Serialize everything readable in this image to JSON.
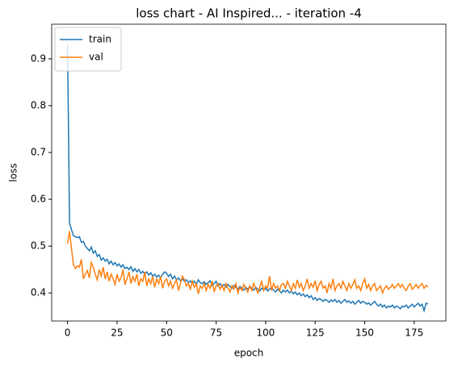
{
  "chart_data": {
    "type": "line",
    "title": "loss chart - AI Inspired... - iteration -4",
    "xlabel": "epoch",
    "ylabel": "loss",
    "x": [
      0,
      1,
      2,
      3,
      4,
      5,
      6,
      7,
      8,
      9,
      10,
      11,
      12,
      13,
      14,
      15,
      16,
      17,
      18,
      19,
      20,
      21,
      22,
      23,
      24,
      25,
      26,
      27,
      28,
      29,
      30,
      31,
      32,
      33,
      34,
      35,
      36,
      37,
      38,
      39,
      40,
      41,
      42,
      43,
      44,
      45,
      46,
      47,
      48,
      49,
      50,
      51,
      52,
      53,
      54,
      55,
      56,
      57,
      58,
      59,
      60,
      61,
      62,
      63,
      64,
      65,
      66,
      67,
      68,
      69,
      70,
      71,
      72,
      73,
      74,
      75,
      76,
      77,
      78,
      79,
      80,
      81,
      82,
      83,
      84,
      85,
      86,
      87,
      88,
      89,
      90,
      91,
      92,
      93,
      94,
      95,
      96,
      97,
      98,
      99,
      100,
      101,
      102,
      103,
      104,
      105,
      106,
      107,
      108,
      109,
      110,
      111,
      112,
      113,
      114,
      115,
      116,
      117,
      118,
      119,
      120,
      121,
      122,
      123,
      124,
      125,
      126,
      127,
      128,
      129,
      130,
      131,
      132,
      133,
      134,
      135,
      136,
      137,
      138,
      139,
      140,
      141,
      142,
      143,
      144,
      145,
      146,
      147,
      148,
      149,
      150,
      151,
      152,
      153,
      154,
      155,
      156,
      157,
      158,
      159,
      160,
      161,
      162,
      163,
      164,
      165,
      166,
      167,
      168,
      169,
      170,
      171,
      172,
      173,
      174,
      175,
      176,
      177,
      178,
      179,
      180,
      181,
      182
    ],
    "series": [
      {
        "name": "train",
        "color": "#1f77b4",
        "values": [
          0.93,
          0.55,
          0.535,
          0.522,
          0.52,
          0.518,
          0.52,
          0.508,
          0.51,
          0.5,
          0.495,
          0.49,
          0.498,
          0.485,
          0.49,
          0.478,
          0.482,
          0.47,
          0.475,
          0.468,
          0.472,
          0.462,
          0.468,
          0.46,
          0.465,
          0.458,
          0.462,
          0.455,
          0.46,
          0.452,
          0.455,
          0.45,
          0.456,
          0.446,
          0.452,
          0.445,
          0.45,
          0.442,
          0.446,
          0.44,
          0.445,
          0.438,
          0.443,
          0.436,
          0.44,
          0.434,
          0.438,
          0.432,
          0.44,
          0.445,
          0.442,
          0.435,
          0.44,
          0.43,
          0.436,
          0.428,
          0.432,
          0.426,
          0.43,
          0.425,
          0.428,
          0.422,
          0.426,
          0.42,
          0.425,
          0.418,
          0.428,
          0.422,
          0.42,
          0.424,
          0.418,
          0.422,
          0.426,
          0.416,
          0.42,
          0.425,
          0.415,
          0.42,
          0.414,
          0.418,
          0.412,
          0.418,
          0.414,
          0.41,
          0.416,
          0.412,
          0.408,
          0.414,
          0.41,
          0.406,
          0.412,
          0.408,
          0.414,
          0.41,
          0.406,
          0.412,
          0.408,
          0.404,
          0.41,
          0.406,
          0.41,
          0.404,
          0.408,
          0.412,
          0.406,
          0.402,
          0.408,
          0.404,
          0.4,
          0.406,
          0.402,
          0.406,
          0.4,
          0.404,
          0.398,
          0.402,
          0.396,
          0.4,
          0.394,
          0.398,
          0.392,
          0.396,
          0.39,
          0.394,
          0.386,
          0.39,
          0.384,
          0.388,
          0.386,
          0.382,
          0.386,
          0.384,
          0.38,
          0.385,
          0.382,
          0.386,
          0.38,
          0.384,
          0.378,
          0.382,
          0.386,
          0.38,
          0.383,
          0.378,
          0.382,
          0.376,
          0.38,
          0.384,
          0.378,
          0.382,
          0.38,
          0.376,
          0.379,
          0.374,
          0.378,
          0.382,
          0.376,
          0.372,
          0.376,
          0.37,
          0.374,
          0.368,
          0.372,
          0.37,
          0.374,
          0.368,
          0.372,
          0.37,
          0.366,
          0.372,
          0.37,
          0.374,
          0.368,
          0.372,
          0.376,
          0.37,
          0.374,
          0.378,
          0.372,
          0.376,
          0.362,
          0.378,
          0.376
        ]
      },
      {
        "name": "val",
        "color": "#ff7f0e",
        "values": [
          0.505,
          0.532,
          0.495,
          0.46,
          0.452,
          0.458,
          0.455,
          0.472,
          0.43,
          0.44,
          0.448,
          0.432,
          0.465,
          0.455,
          0.44,
          0.428,
          0.45,
          0.436,
          0.455,
          0.43,
          0.445,
          0.425,
          0.44,
          0.43,
          0.418,
          0.44,
          0.425,
          0.432,
          0.45,
          0.418,
          0.43,
          0.445,
          0.42,
          0.435,
          0.425,
          0.44,
          0.415,
          0.43,
          0.425,
          0.445,
          0.415,
          0.43,
          0.42,
          0.435,
          0.412,
          0.43,
          0.42,
          0.435,
          0.41,
          0.425,
          0.43,
          0.415,
          0.425,
          0.41,
          0.42,
          0.428,
          0.405,
          0.42,
          0.436,
          0.428,
          0.415,
          0.42,
          0.408,
          0.425,
          0.412,
          0.42,
          0.398,
          0.415,
          0.41,
          0.42,
          0.405,
          0.418,
          0.41,
          0.425,
          0.402,
          0.415,
          0.42,
          0.408,
          0.416,
          0.405,
          0.42,
          0.41,
          0.402,
          0.415,
          0.408,
          0.42,
          0.4,
          0.412,
          0.405,
          0.418,
          0.41,
          0.402,
          0.415,
          0.405,
          0.42,
          0.41,
          0.4,
          0.412,
          0.425,
          0.405,
          0.415,
          0.41,
          0.436,
          0.405,
          0.42,
          0.41,
          0.415,
          0.405,
          0.418,
          0.42,
          0.41,
          0.425,
          0.415,
          0.405,
          0.42,
          0.41,
          0.428,
          0.412,
          0.42,
          0.405,
          0.415,
          0.43,
          0.41,
          0.42,
          0.412,
          0.426,
          0.405,
          0.418,
          0.425,
          0.41,
          0.415,
          0.4,
          0.42,
          0.41,
          0.43,
          0.405,
          0.415,
          0.42,
          0.41,
          0.425,
          0.415,
          0.405,
          0.42,
          0.41,
          0.418,
          0.428,
          0.41,
          0.415,
          0.405,
          0.42,
          0.43,
          0.41,
          0.418,
          0.405,
          0.415,
          0.42,
          0.405,
          0.41,
          0.415,
          0.4,
          0.41,
          0.415,
          0.408,
          0.412,
          0.418,
          0.41,
          0.415,
          0.42,
          0.412,
          0.418,
          0.41,
          0.405,
          0.415,
          0.42,
          0.408,
          0.412,
          0.418,
          0.41,
          0.416,
          0.42,
          0.41,
          0.416,
          0.413
        ]
      }
    ],
    "xlim": [
      -8,
      191
    ],
    "ylim": [
      0.34,
      0.974
    ],
    "xticks": [
      0,
      25,
      50,
      75,
      100,
      125,
      150,
      175
    ],
    "yticks": [
      0.4,
      0.5,
      0.6,
      0.7,
      0.8,
      0.9
    ],
    "legend": "upper left"
  }
}
